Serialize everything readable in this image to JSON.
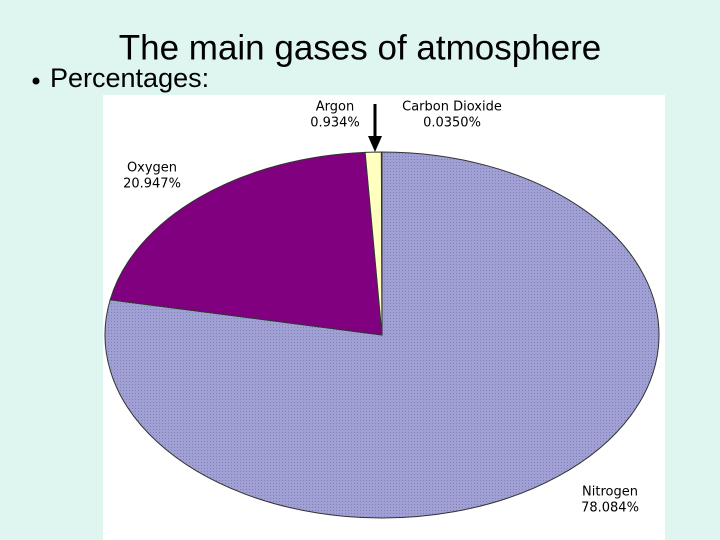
{
  "slide": {
    "title": "The main gases of atmosphere",
    "bullet": "Percentages:"
  },
  "chart_data": {
    "type": "pie",
    "categories": [
      "Nitrogen",
      "Oxygen",
      "Argon",
      "Carbon Dioxide"
    ],
    "values": [
      78.084,
      20.947,
      0.934,
      0.035
    ],
    "value_labels": [
      "78.084%",
      "20.947%",
      "0.934%",
      "0.0350%"
    ],
    "colors": [
      "#9c9ccf",
      "#800080",
      "#ffffc0",
      "#66cccc"
    ]
  }
}
